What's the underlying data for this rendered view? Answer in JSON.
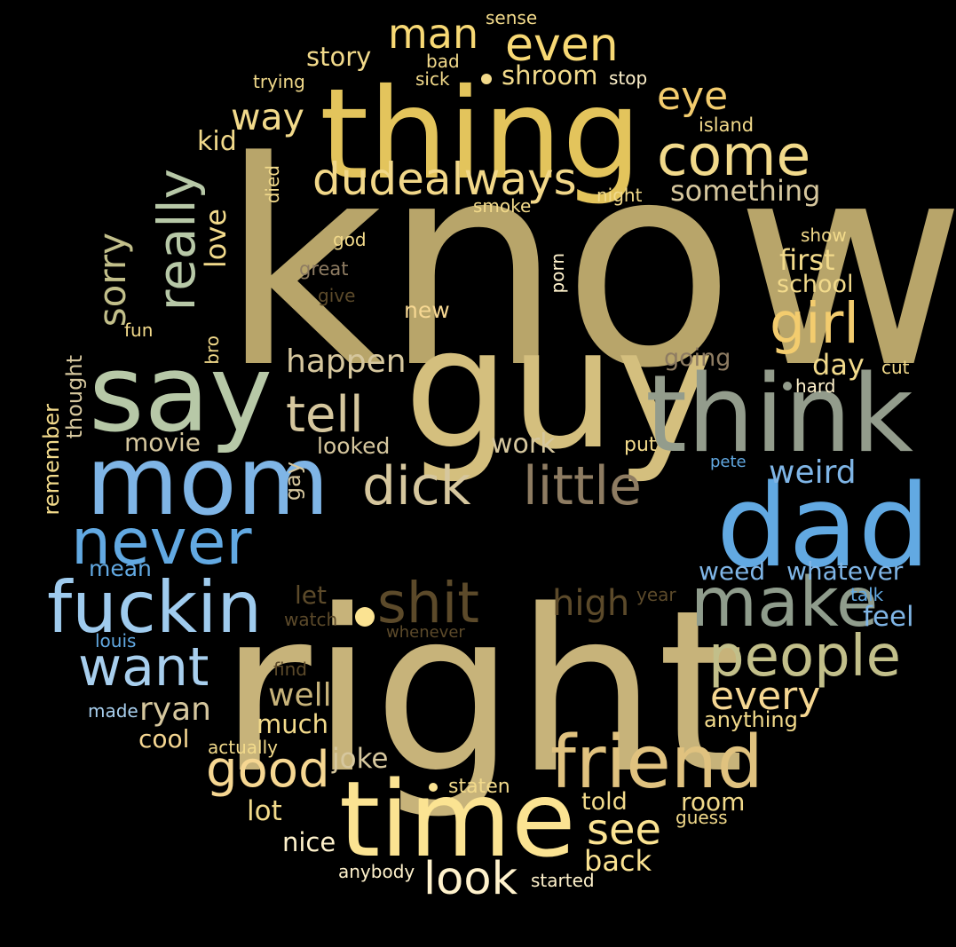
{
  "words": [
    {
      "text": "know",
      "color": "#b8a56a"
    },
    {
      "text": "right",
      "color": "#c7b37a"
    },
    {
      "text": "thing",
      "color": "#e3c45c"
    },
    {
      "text": "guy",
      "color": "#d4bf7e"
    },
    {
      "text": "say",
      "color": "#b7c8a7"
    },
    {
      "text": "think",
      "color": "#939c8c"
    },
    {
      "text": "time",
      "color": "#fbe392"
    },
    {
      "text": "dad",
      "color": "#62a9e2"
    },
    {
      "text": "mom",
      "color": "#7fb5e6"
    },
    {
      "text": "fuckin",
      "color": "#9fcbee"
    },
    {
      "text": "make",
      "color": "#8f9c8c"
    },
    {
      "text": "friend",
      "color": "#e0c27f"
    },
    {
      "text": "never",
      "color": "#62a9e2"
    },
    {
      "text": "really",
      "color": "#b7c8a7"
    },
    {
      "text": "shit",
      "color": "#5c4a2a"
    },
    {
      "text": "little",
      "color": "#8e7c62"
    },
    {
      "text": "come",
      "color": "#f2da8b"
    },
    {
      "text": "people",
      "color": "#c2bf8a"
    },
    {
      "text": "want",
      "color": "#a8cfee"
    },
    {
      "text": "girl",
      "color": "#f3cc6e"
    },
    {
      "text": "dick",
      "color": "#d6c79e"
    },
    {
      "text": "good",
      "color": "#f6d792"
    },
    {
      "text": "tell",
      "color": "#d6c79e"
    },
    {
      "text": "look",
      "color": "#fff2cc"
    },
    {
      "text": "dudealways",
      "color": "#f2d889"
    },
    {
      "text": "even",
      "color": "#f8d975"
    },
    {
      "text": "man",
      "color": "#f8d975"
    },
    {
      "text": "see",
      "color": "#fbe392"
    },
    {
      "text": "sorry",
      "color": "#c2bf8a"
    },
    {
      "text": "eye",
      "color": "#f3cc6e"
    },
    {
      "text": "every",
      "color": "#f6d792"
    },
    {
      "text": "way",
      "color": "#f2da8b"
    },
    {
      "text": "high",
      "color": "#5c4a2a"
    },
    {
      "text": "happen",
      "color": "#d6c79e"
    },
    {
      "text": "weird",
      "color": "#7fb5e6"
    },
    {
      "text": "something",
      "color": "#d6c79e"
    },
    {
      "text": "love",
      "color": "#f2da8b"
    },
    {
      "text": "first",
      "color": "#f2da8b"
    },
    {
      "text": "ryan",
      "color": "#d6c79e"
    },
    {
      "text": "well",
      "color": "#c7b37a"
    },
    {
      "text": "feel",
      "color": "#7fb5e6"
    },
    {
      "text": "back",
      "color": "#fbe392"
    },
    {
      "text": "story",
      "color": "#f2da8b"
    },
    {
      "text": "shroom",
      "color": "#f2da8b"
    },
    {
      "text": "whatever",
      "color": "#7fb5e6"
    },
    {
      "text": "weed",
      "color": "#7fb5e6"
    },
    {
      "text": "school",
      "color": "#f2da8b"
    },
    {
      "text": "day",
      "color": "#f2da8b"
    },
    {
      "text": "movie",
      "color": "#d6c79e"
    },
    {
      "text": "work",
      "color": "#d6c79e"
    },
    {
      "text": "going",
      "color": "#8e7c62"
    },
    {
      "text": "joke",
      "color": "#d6c79e"
    },
    {
      "text": "lot",
      "color": "#f2da8b"
    },
    {
      "text": "room",
      "color": "#f2da8b"
    },
    {
      "text": "much",
      "color": "#f2da8b"
    },
    {
      "text": "cool",
      "color": "#f6d792"
    },
    {
      "text": "nice",
      "color": "#fff2cc"
    },
    {
      "text": "told",
      "color": "#f2da8b"
    },
    {
      "text": "kid",
      "color": "#f2da8b"
    },
    {
      "text": "new",
      "color": "#f6d792"
    },
    {
      "text": "let",
      "color": "#5c4a2a"
    },
    {
      "text": "looked",
      "color": "#d6c79e"
    },
    {
      "text": "mean",
      "color": "#62a9e2"
    },
    {
      "text": "thought",
      "color": "#d6c79e"
    },
    {
      "text": "remember",
      "color": "#f2da8b"
    },
    {
      "text": "gay",
      "color": "#d6c79e"
    },
    {
      "text": "anything",
      "color": "#f2da8b"
    },
    {
      "text": "staten",
      "color": "#f2da8b"
    },
    {
      "text": "put",
      "color": "#f2da8b"
    },
    {
      "text": "stop",
      "color": "#fff2cc"
    },
    {
      "text": "sense",
      "color": "#f2da8b"
    },
    {
      "text": "bad",
      "color": "#f2da8b"
    },
    {
      "text": "sick",
      "color": "#f2da8b"
    },
    {
      "text": "trying",
      "color": "#f2da8b"
    },
    {
      "text": "island",
      "color": "#f2da8b"
    },
    {
      "text": "night",
      "color": "#f2da8b"
    },
    {
      "text": "smoke",
      "color": "#f2da8b"
    },
    {
      "text": "died",
      "color": "#f2da8b"
    },
    {
      "text": "god",
      "color": "#f2da8b"
    },
    {
      "text": "great",
      "color": "#8e7c62"
    },
    {
      "text": "give",
      "color": "#5c4a2a"
    },
    {
      "text": "porn",
      "color": "#fff2cc"
    },
    {
      "text": "show",
      "color": "#f2da8b"
    },
    {
      "text": "fun",
      "color": "#f2da8b"
    },
    {
      "text": "bro",
      "color": "#f2da8b"
    },
    {
      "text": "hard",
      "color": "#fff2cc"
    },
    {
      "text": "cut",
      "color": "#f2da8b"
    },
    {
      "text": "pete",
      "color": "#62a9e2"
    },
    {
      "text": "year",
      "color": "#5c4a2a"
    },
    {
      "text": "talk",
      "color": "#62a9e2"
    },
    {
      "text": "watch",
      "color": "#5c4a2a"
    },
    {
      "text": "whenever",
      "color": "#5c4a2a"
    },
    {
      "text": "louis",
      "color": "#62a9e2"
    },
    {
      "text": "find",
      "color": "#5c4a2a"
    },
    {
      "text": "made",
      "color": "#a8cfee"
    },
    {
      "text": "actually",
      "color": "#f2da8b"
    },
    {
      "text": "guess",
      "color": "#f2da8b"
    },
    {
      "text": "started",
      "color": "#fff2cc"
    },
    {
      "text": "anybody",
      "color": "#fff2cc"
    }
  ]
}
